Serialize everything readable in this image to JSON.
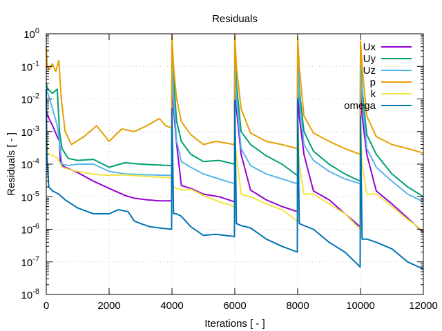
{
  "chart_data": {
    "type": "line",
    "title": "Residuals",
    "xlabel": "Iterations [ - ]",
    "ylabel": "Residuals [ - ]",
    "xlim": [
      0,
      12000
    ],
    "ylim": [
      1e-08,
      1
    ],
    "yscale": "log",
    "grid": true,
    "legend_position": "top-right",
    "x_ticks": [
      {
        "value": 0,
        "label": "0"
      },
      {
        "value": 2000,
        "label": "2000"
      },
      {
        "value": 4000,
        "label": "4000"
      },
      {
        "value": 6000,
        "label": "6000"
      },
      {
        "value": 8000,
        "label": "8000"
      },
      {
        "value": 10000,
        "label": "10000"
      },
      {
        "value": 12000,
        "label": "12000"
      }
    ],
    "y_ticks": [
      {
        "exp": 0,
        "base": "10",
        "sup": "0"
      },
      {
        "exp": -1,
        "base": "10",
        "sup": "-1"
      },
      {
        "exp": -2,
        "base": "10",
        "sup": "-2"
      },
      {
        "exp": -3,
        "base": "10",
        "sup": "-3"
      },
      {
        "exp": -4,
        "base": "10",
        "sup": "-4"
      },
      {
        "exp": -5,
        "base": "10",
        "sup": "-5"
      },
      {
        "exp": -6,
        "base": "10",
        "sup": "-6"
      },
      {
        "exp": -7,
        "base": "10",
        "sup": "-7"
      },
      {
        "exp": -8,
        "base": "10",
        "sup": "-8"
      }
    ],
    "series": [
      {
        "name": "Ux",
        "color": "#9400d3",
        "x": [
          0,
          50,
          200,
          350,
          420,
          450,
          600,
          1000,
          1500,
          2000,
          2500,
          2800,
          3200,
          3600,
          3990,
          4000,
          4050,
          4150,
          4300,
          4600,
          5000,
          5500,
          5990,
          6000,
          6050,
          6200,
          6500,
          7000,
          7500,
          7990,
          8000,
          8050,
          8200,
          8500,
          9000,
          9500,
          9990,
          10000,
          10050,
          10200,
          10500,
          11000,
          11500,
          12000
        ],
        "y": [
          0.005,
          0.003,
          0.0015,
          0.0007,
          0.0005,
          0.0001,
          8e-05,
          5.5e-05,
          3e-05,
          1.8e-05,
          1.1e-05,
          9e-06,
          8e-06,
          7.5e-06,
          7.5e-06,
          0.05,
          0.005,
          0.0004,
          2.2e-05,
          1.8e-05,
          1.2e-05,
          1e-05,
          7e-06,
          0.1,
          0.005,
          0.0002,
          1.6e-05,
          8e-06,
          5e-06,
          3.5e-06,
          0.03,
          0.003,
          0.0002,
          1.5e-05,
          8e-06,
          3e-06,
          1.2e-06,
          0.03,
          0.003,
          0.0002,
          1.5e-05,
          6e-06,
          2.2e-06,
          8e-07
        ]
      },
      {
        "name": "Uy",
        "color": "#009e73",
        "x": [
          0,
          50,
          200,
          350,
          420,
          500,
          700,
          1000,
          1500,
          2000,
          2500,
          3000,
          3500,
          3990,
          4000,
          4050,
          4150,
          4300,
          4600,
          5000,
          5500,
          5990,
          6000,
          6050,
          6200,
          6500,
          7000,
          7500,
          7990,
          8000,
          8050,
          8200,
          8500,
          9000,
          9500,
          9990,
          10000,
          10050,
          10200,
          10500,
          11000,
          11500,
          12000
        ],
        "y": [
          0.03,
          0.02,
          0.015,
          0.02,
          0.001,
          0.0003,
          0.00015,
          0.00013,
          0.00014,
          8e-05,
          0.00011,
          0.0001,
          9.5e-05,
          9e-05,
          0.5,
          0.04,
          0.002,
          0.0005,
          0.0002,
          0.00012,
          0.00013,
          0.0001,
          0.4,
          0.03,
          0.001,
          0.0004,
          0.00018,
          0.0001,
          4.5e-05,
          0.3,
          0.02,
          0.001,
          0.00025,
          0.0001,
          5e-05,
          3e-05,
          0.3,
          0.02,
          0.0008,
          0.0002,
          5e-05,
          2e-05,
          1e-05
        ]
      },
      {
        "name": "Uz",
        "color": "#56b4e9",
        "x": [
          0,
          50,
          200,
          350,
          420,
          500,
          700,
          1000,
          1500,
          2000,
          2500,
          3000,
          3500,
          3990,
          4000,
          4050,
          4150,
          4300,
          4600,
          5000,
          5500,
          5990,
          6000,
          6050,
          6200,
          6500,
          7000,
          7500,
          7990,
          8000,
          8050,
          8200,
          8500,
          9000,
          9500,
          9990,
          10000,
          10050,
          10200,
          10500,
          11000,
          11500,
          12000
        ],
        "y": [
          0.02,
          0.015,
          0.005,
          0.0015,
          0.0005,
          0.0001,
          9e-05,
          0.0001,
          0.0001,
          6e-05,
          5e-05,
          4.8e-05,
          4.6e-05,
          4.5e-05,
          0.3,
          0.01,
          0.0005,
          0.00012,
          8e-05,
          5e-05,
          3.5e-05,
          2.5e-05,
          0.2,
          0.01,
          0.0003,
          9e-05,
          5e-05,
          3.5e-05,
          2.5e-05,
          0.2,
          0.01,
          0.0004,
          0.00013,
          6e-05,
          3.5e-05,
          2.5e-05,
          0.2,
          0.01,
          0.0003,
          8e-05,
          3e-05,
          1.2e-05,
          7e-06
        ]
      },
      {
        "name": "p",
        "color": "#e69f00",
        "x": [
          0,
          30,
          100,
          200,
          300,
          400,
          480,
          600,
          800,
          1200,
          1600,
          2000,
          2400,
          2800,
          3200,
          3600,
          3800,
          3990,
          4000,
          4050,
          4150,
          4300,
          4600,
          5000,
          5400,
          5990,
          6000,
          6050,
          6200,
          6500,
          7000,
          7500,
          7990,
          8000,
          8050,
          8200,
          8500,
          9000,
          9500,
          9990,
          10000,
          10050,
          10200,
          10500,
          11000,
          11500,
          12000
        ],
        "y": [
          0.4,
          0.1,
          0.08,
          0.12,
          0.07,
          0.15,
          0.01,
          0.001,
          0.0004,
          0.0007,
          0.0015,
          0.0005,
          0.0012,
          0.001,
          0.0015,
          0.0025,
          0.0015,
          0.0013,
          0.9,
          0.1,
          0.01,
          0.002,
          0.0008,
          0.0004,
          0.0005,
          0.0004,
          0.9,
          0.1,
          0.005,
          0.0009,
          0.0005,
          0.0004,
          0.0003,
          0.8,
          0.1,
          0.003,
          0.0009,
          0.0005,
          0.0003,
          0.0002,
          0.6,
          0.1,
          0.003,
          0.0007,
          0.0004,
          0.0003,
          0.00022
        ]
      },
      {
        "name": "k",
        "color": "#f0e442",
        "x": [
          0,
          50,
          150,
          250,
          350,
          500,
          800,
          1200,
          1600,
          2000,
          2500,
          3000,
          3500,
          3990,
          4000,
          4050,
          4150,
          4300,
          4600,
          5000,
          5500,
          5990,
          6000,
          6050,
          6200,
          6500,
          7000,
          7500,
          7990,
          8000,
          8050,
          8200,
          8500,
          9000,
          9500,
          9990,
          10000,
          10050,
          10200,
          10500,
          11000,
          11500,
          12000
        ],
        "y": [
          0.002,
          0.0002,
          0.0002,
          0.00017,
          0.00016,
          8e-05,
          6.5e-05,
          5.5e-05,
          4.8e-05,
          4.5e-05,
          4.7e-05,
          4.3e-05,
          4e-05,
          3.8e-05,
          3e-05,
          2e-05,
          1.8e-05,
          1.6e-05,
          1.7e-05,
          1.1e-05,
          7e-06,
          5e-06,
          0.0005,
          0.0002,
          1.2e-05,
          1e-05,
          6e-06,
          4e-06,
          1.8e-06,
          0.003,
          0.0001,
          1.2e-05,
          1.2e-05,
          6e-06,
          3e-06,
          1e-06,
          0.003,
          0.0001,
          1.2e-05,
          1.2e-05,
          5e-06,
          2e-06,
          9e-07
        ]
      },
      {
        "name": "omega",
        "color": "#0072b2",
        "x": [
          0,
          20,
          80,
          200,
          400,
          600,
          1000,
          1500,
          2000,
          2300,
          2600,
          2800,
          3000,
          3300,
          3600,
          3990,
          4000,
          4050,
          4150,
          4300,
          4600,
          5000,
          5400,
          5990,
          6000,
          6050,
          6200,
          6500,
          7000,
          7500,
          7990,
          8000,
          8050,
          8200,
          8500,
          9000,
          9500,
          9990,
          10000,
          10050,
          10200,
          10500,
          11000,
          11500,
          12000
        ],
        "y": [
          0.02,
          0.0002,
          2e-05,
          1.5e-05,
          1.2e-05,
          8e-06,
          4.5e-06,
          3e-06,
          3e-06,
          4e-06,
          3.5e-06,
          1.8e-06,
          1.5e-06,
          1.2e-06,
          1.1e-06,
          1e-06,
          0.005,
          3e-06,
          3e-06,
          2.5e-06,
          1.2e-06,
          6.5e-07,
          7e-07,
          6e-07,
          0.009,
          1.5e-06,
          1.3e-06,
          1.1e-06,
          5e-07,
          3e-07,
          2e-07,
          0.01,
          1.5e-06,
          1.3e-06,
          1e-06,
          4e-07,
          2e-07,
          7e-08,
          0.003,
          5e-07,
          5e-07,
          4e-07,
          2.5e-07,
          1e-07,
          6e-08
        ]
      }
    ]
  }
}
